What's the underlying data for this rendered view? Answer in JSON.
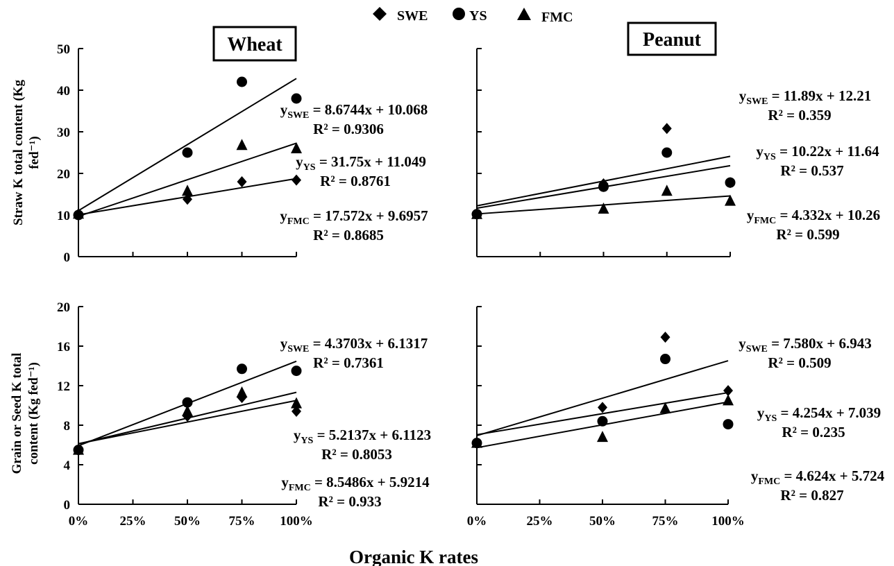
{
  "legend": [
    {
      "name": "SWE",
      "marker": "diamond"
    },
    {
      "name": "YS",
      "marker": "circle"
    },
    {
      "name": "FMC",
      "marker": "triangle"
    }
  ],
  "xlabel": "Organic K rates",
  "chart_data": [
    {
      "type": "scatter",
      "panel": "top-left",
      "crop_label": "Wheat",
      "ylabel": [
        "Straw K total content (Kg",
        "fed⁻¹)"
      ],
      "x": [
        0,
        0.5,
        0.75,
        1
      ],
      "xticks": [
        "0%",
        "25%",
        "50%",
        "75%",
        "100%"
      ],
      "ylim": [
        0,
        50
      ],
      "yticks": [
        "0",
        "10",
        "20",
        "30",
        "40",
        "50"
      ],
      "series": [
        {
          "name": "SWE",
          "marker": "diamond",
          "values": [
            10,
            13.8,
            18,
            18.4
          ]
        },
        {
          "name": "YS",
          "marker": "circle",
          "values": [
            10,
            25,
            42,
            38
          ]
        },
        {
          "name": "FMC",
          "marker": "triangle",
          "values": [
            10.3,
            15.8,
            26.8,
            26
          ]
        }
      ],
      "trendlines": [
        {
          "series": "SWE",
          "slope": 8.6744,
          "intercept": 10.068
        },
        {
          "series": "YS",
          "slope": 31.75,
          "intercept": 11.049
        },
        {
          "series": "FMC",
          "slope": 17.572,
          "intercept": 9.6957
        }
      ],
      "equations": [
        {
          "sub": "SWE",
          "eq": " = 8.6744x + 10.068",
          "r2": "R² = 0.9306"
        },
        {
          "sub": "YS",
          "eq": " = 31.75x + 11.049",
          "r2": "R² = 0.8761"
        },
        {
          "sub": "FMC",
          "eq": " = 17.572x + 9.6957",
          "r2": "R² = 0.8685"
        }
      ]
    },
    {
      "type": "scatter",
      "panel": "top-right",
      "crop_label": "Peanut",
      "x": [
        0,
        0.5,
        0.75,
        1
      ],
      "xticks": [],
      "ylim": [
        0,
        50
      ],
      "yticks": [],
      "series": [
        {
          "name": "SWE",
          "marker": "diamond",
          "values": [
            10.2,
            17.5,
            30.8,
            17.8
          ]
        },
        {
          "name": "YS",
          "marker": "circle",
          "values": [
            10.2,
            16.8,
            25,
            17.8
          ]
        },
        {
          "name": "FMC",
          "marker": "triangle",
          "values": [
            10.2,
            11.5,
            15.8,
            13.4
          ]
        }
      ],
      "trendlines": [
        {
          "series": "SWE",
          "slope": 11.89,
          "intercept": 12.21
        },
        {
          "series": "YS",
          "slope": 10.22,
          "intercept": 11.64
        },
        {
          "series": "FMC",
          "slope": 4.332,
          "intercept": 10.26
        }
      ],
      "equations": [
        {
          "sub": "SWE",
          "eq": " = 11.89x + 12.21",
          "r2": "R² = 0.359"
        },
        {
          "sub": "YS",
          "eq": " = 10.22x + 11.64",
          "r2": "R² = 0.537"
        },
        {
          "sub": "FMC",
          "eq": " = 4.332x + 10.26",
          "r2": "R² = 0.599"
        }
      ]
    },
    {
      "type": "scatter",
      "panel": "bottom-left",
      "ylabel": [
        "Grain or Seed  K total",
        "content (Kg fed⁻¹)"
      ],
      "x": [
        0,
        0.5,
        0.75,
        1
      ],
      "xticks": [
        "0%",
        "25%",
        "50%",
        "75%",
        "100%"
      ],
      "ylim": [
        0,
        20
      ],
      "yticks": [
        "0",
        "4",
        "8",
        "12",
        "16",
        "20"
      ],
      "series": [
        {
          "name": "SWE",
          "marker": "diamond",
          "values": [
            5.5,
            8.9,
            10.8,
            9.4
          ]
        },
        {
          "name": "YS",
          "marker": "circle",
          "values": [
            5.5,
            10.3,
            13.7,
            13.5
          ]
        },
        {
          "name": "FMC",
          "marker": "triangle",
          "values": [
            5.5,
            9.4,
            11.3,
            10.2
          ]
        }
      ],
      "trendlines": [
        {
          "series": "SWE",
          "slope": 4.3703,
          "intercept": 6.1317
        },
        {
          "series": "YS",
          "slope": 5.2137,
          "intercept": 6.1123
        },
        {
          "series": "FMC",
          "slope": 8.5486,
          "intercept": 5.9214
        }
      ],
      "equations": [
        {
          "sub": "SWE",
          "eq": " = 4.3703x + 6.1317",
          "r2": "R² = 0.7361"
        },
        {
          "sub": "YS",
          "eq": " = 5.2137x + 6.1123",
          "r2": "R² = 0.8053"
        },
        {
          "sub": "FMC",
          "eq": " = 8.5486x + 5.9214",
          "r2": "R² = 0.933"
        }
      ]
    },
    {
      "type": "scatter",
      "panel": "bottom-right",
      "x": [
        0,
        0.5,
        0.75,
        1
      ],
      "xticks": [
        "0%",
        "25%",
        "50%",
        "75%",
        "100%"
      ],
      "ylim": [
        0,
        20
      ],
      "yticks": [],
      "series": [
        {
          "name": "SWE",
          "marker": "diamond",
          "values": [
            6.2,
            9.8,
            16.9,
            11.5
          ]
        },
        {
          "name": "YS",
          "marker": "circle",
          "values": [
            6.2,
            8.4,
            14.7,
            8.1
          ]
        },
        {
          "name": "FMC",
          "marker": "triangle",
          "values": [
            6.2,
            6.8,
            9.7,
            10.5
          ]
        }
      ],
      "trendlines": [
        {
          "series": "SWE",
          "slope": 7.58,
          "intercept": 6.943
        },
        {
          "series": "YS",
          "slope": 4.254,
          "intercept": 7.039
        },
        {
          "series": "FMC",
          "slope": 4.624,
          "intercept": 5.724
        }
      ],
      "equations": [
        {
          "sub": "SWE",
          "eq": " = 7.580x + 6.943",
          "r2": "R² = 0.509"
        },
        {
          "sub": "YS",
          "eq": " = 4.254x + 7.039",
          "r2": "R² = 0.235"
        },
        {
          "sub": "FMC",
          "eq": " = 4.624x + 5.724",
          "r2": "R² = 0.827"
        }
      ]
    }
  ]
}
